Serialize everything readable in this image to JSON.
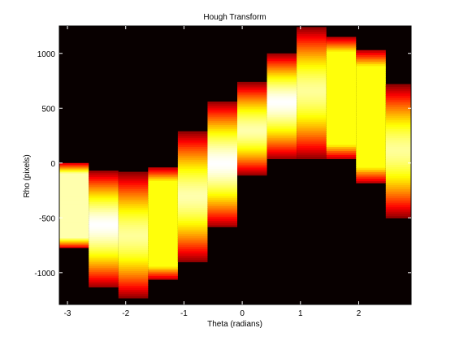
{
  "chart_data": {
    "type": "heatmap",
    "title": "Hough Transform",
    "xlabel": "Theta (radians)",
    "ylabel": "Rho (pixels)",
    "xlim": [
      -3.14,
      2.9
    ],
    "ylim": [
      -1290,
      1250
    ],
    "xticks": [
      -3,
      -2,
      -1,
      0,
      1,
      2
    ],
    "yticks": [
      -1000,
      -500,
      0,
      500,
      1000
    ],
    "background_color": "#080000",
    "colormap": "hot",
    "theta_bin_width": 0.51,
    "columns": [
      {
        "theta": -2.89,
        "rho_min": -770,
        "rho_max": 0,
        "peak_rho": -385,
        "max": 0.92,
        "flat": true
      },
      {
        "theta": -2.38,
        "rho_min": -1130,
        "rho_max": -70,
        "peak_rho": -560,
        "max": 1.0,
        "flat": false
      },
      {
        "theta": -1.87,
        "rho_min": -1230,
        "rho_max": -80,
        "peak_rho": -660,
        "max": 0.9,
        "flat": false
      },
      {
        "theta": -1.36,
        "rho_min": -1060,
        "rho_max": -40,
        "peak_rho": -550,
        "max": 0.76,
        "flat": true
      },
      {
        "theta": -0.85,
        "rho_min": -900,
        "rho_max": 290,
        "peak_rho": -300,
        "max": 0.92,
        "flat": false
      },
      {
        "theta": -0.34,
        "rho_min": -580,
        "rho_max": 560,
        "peak_rho": 0,
        "max": 1.0,
        "flat": false
      },
      {
        "theta": 0.17,
        "rho_min": -110,
        "rho_max": 740,
        "peak_rho": 300,
        "max": 0.92,
        "flat": false
      },
      {
        "theta": 0.68,
        "rho_min": 40,
        "rho_max": 1000,
        "peak_rho": 560,
        "max": 1.0,
        "flat": false
      },
      {
        "theta": 1.19,
        "rho_min": 40,
        "rho_max": 1240,
        "peak_rho": 660,
        "max": 0.9,
        "flat": false
      },
      {
        "theta": 1.7,
        "rho_min": 40,
        "rho_max": 1150,
        "peak_rho": 560,
        "max": 0.76,
        "flat": true
      },
      {
        "theta": 2.21,
        "rho_min": -180,
        "rho_max": 1030,
        "peak_rho": 390,
        "max": 0.76,
        "flat": true
      },
      {
        "theta": 2.72,
        "rho_min": -500,
        "rho_max": 720,
        "peak_rho": 120,
        "max": 0.9,
        "flat": false
      }
    ]
  }
}
